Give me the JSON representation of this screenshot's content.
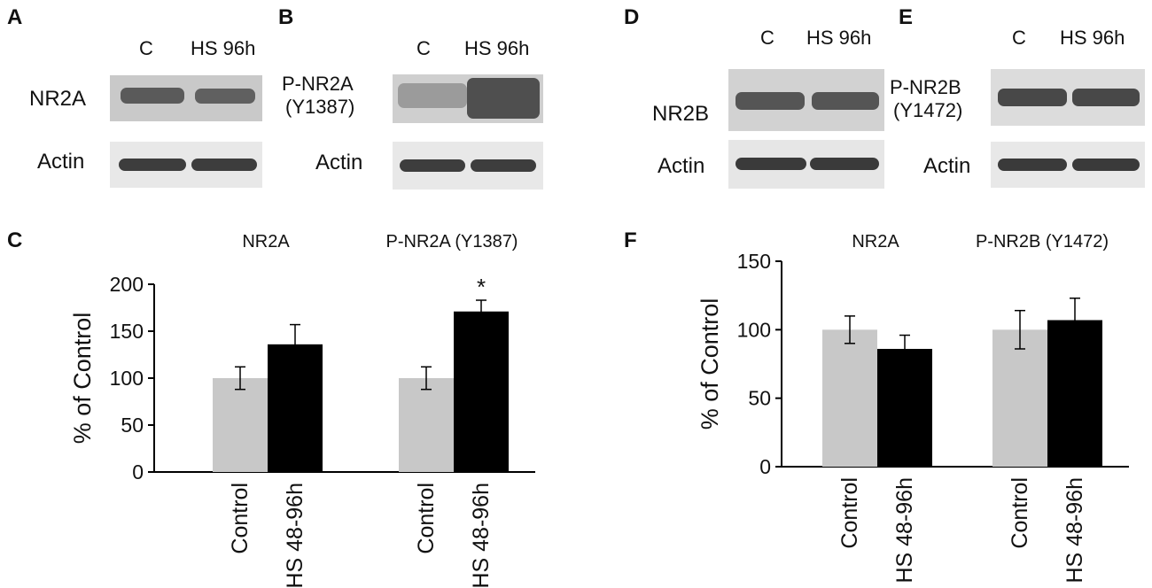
{
  "panels": {
    "A": {
      "letter": "A",
      "lanes": [
        "C",
        "HS 96h"
      ],
      "target": "NR2A",
      "loading": "Actin"
    },
    "B": {
      "letter": "B",
      "lanes": [
        "C",
        "HS 96h"
      ],
      "target_line1": "P-NR2A",
      "target_line2": "(Y1387)",
      "loading": "Actin"
    },
    "D": {
      "letter": "D",
      "lanes": [
        "C",
        "HS 96h"
      ],
      "target": "NR2B",
      "loading": "Actin"
    },
    "E": {
      "letter": "E",
      "lanes": [
        "C",
        "HS 96h"
      ],
      "target_line1": "P-NR2B",
      "target_line2": "(Y1472)",
      "loading": "Actin"
    },
    "C": {
      "letter": "C"
    },
    "F": {
      "letter": "F"
    }
  },
  "chart_data": [
    {
      "id": "C",
      "type": "bar",
      "ylabel": "% of Control",
      "ylim": [
        0,
        200
      ],
      "yticks": [
        0,
        50,
        100,
        150,
        200
      ],
      "groups": [
        "NR2A",
        "P-NR2A (Y1387)"
      ],
      "categories": [
        "Control",
        "HS 48-96h"
      ],
      "series": [
        {
          "name": "Control",
          "color": "#c8c8c8",
          "values": [
            100,
            100
          ],
          "errors": [
            12,
            12
          ]
        },
        {
          "name": "HS 48-96h",
          "color": "#000000",
          "values": [
            136,
            171
          ],
          "errors": [
            21,
            12
          ]
        }
      ],
      "annotations": [
        {
          "group": 1,
          "series": 1,
          "text": "*"
        }
      ],
      "grid": false
    },
    {
      "id": "F",
      "type": "bar",
      "ylabel": "% of Control",
      "ylim": [
        0,
        150
      ],
      "yticks": [
        0,
        50,
        100,
        150
      ],
      "groups": [
        "NR2A",
        "P-NR2B (Y1472)"
      ],
      "categories": [
        "Control",
        "HS 48-96h"
      ],
      "series": [
        {
          "name": "Control",
          "color": "#c8c8c8",
          "values": [
            100,
            100
          ],
          "errors": [
            10,
            14
          ]
        },
        {
          "name": "HS 48-96h",
          "color": "#000000",
          "values": [
            86,
            107
          ],
          "errors": [
            10,
            16
          ]
        }
      ],
      "annotations": [],
      "grid": false
    }
  ]
}
